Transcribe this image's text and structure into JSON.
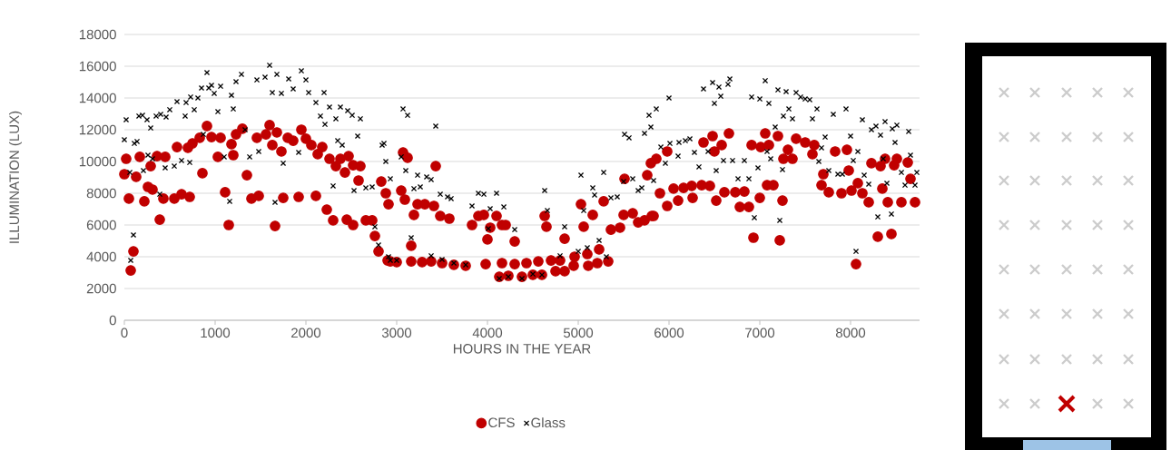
{
  "chart_data": {
    "type": "scatter",
    "xlabel": "HOURS IN THE YEAR",
    "ylabel": "ILLUMINATION (LUX)",
    "xlim": [
      0,
      8760
    ],
    "ylim": [
      0,
      18000
    ],
    "xticks": [
      0,
      1000,
      2000,
      3000,
      4000,
      5000,
      6000,
      7000,
      8000
    ],
    "yticks": [
      0,
      2000,
      4000,
      6000,
      8000,
      10000,
      12000,
      14000,
      16000,
      18000
    ],
    "grid": "y",
    "legend": "bottom",
    "series": [
      {
        "name": "CFS",
        "color": "#c00000",
        "marker": "circle",
        "x": [
          70,
          100,
          50,
          20,
          0,
          130,
          170,
          290,
          260,
          310,
          220,
          390,
          430,
          550,
          630,
          720,
          580,
          700,
          750,
          450,
          360,
          860,
          910,
          830,
          960,
          1060,
          1030,
          1110,
          1150,
          1180,
          1200,
          1230,
          1300,
          1350,
          1400,
          1480,
          1460,
          1560,
          1600,
          1630,
          1680,
          1660,
          1750,
          1730,
          1800,
          1860,
          1950,
          1920,
          2000,
          2060,
          2110,
          2130,
          2180,
          2230,
          2260,
          2300,
          2330,
          2380,
          2430,
          2450,
          2470,
          2520,
          2520,
          2600,
          2580,
          2660,
          2730,
          2760,
          2800,
          2830,
          2880,
          2910,
          2900,
          2930,
          3000,
          3070,
          3120,
          3050,
          3090,
          3160,
          3190,
          3230,
          3310,
          3410,
          3430,
          3480,
          3580,
          3160,
          3280,
          3380,
          3500,
          3630,
          3760,
          3830,
          3900,
          3960,
          4000,
          4030,
          3980,
          4100,
          4160,
          4200,
          4300,
          4130,
          4230,
          4380,
          4500,
          4600,
          4160,
          4300,
          4430,
          4560,
          4630,
          4650,
          4700,
          4750,
          4850,
          4850,
          4800,
          4960,
          4950,
          5030,
          5060,
          5100,
          5110,
          5160,
          5230,
          5210,
          5280,
          5330,
          5360,
          5460,
          5500,
          5510,
          5600,
          5660,
          5730,
          5760,
          5800,
          5810,
          5830,
          5860,
          5900,
          5980,
          5980,
          6100,
          6050,
          6160,
          6250,
          6260,
          6360,
          6380,
          6450,
          6480,
          6500,
          6520,
          6580,
          6610,
          6660,
          6730,
          6780,
          6830,
          6880,
          6930,
          6910,
          7010,
          7000,
          7060,
          7080,
          7100,
          7150,
          7200,
          7220,
          7250,
          7260,
          7310,
          7360,
          7400,
          7500,
          7600,
          7580,
          7680,
          7700,
          7760,
          7830,
          7900,
          7960,
          7980,
          8010,
          8060,
          8080,
          8130,
          8200,
          8230,
          8300,
          8330,
          8350,
          8380,
          8410,
          8450,
          8480,
          8510,
          8560,
          8630,
          8660,
          8710
        ],
        "values": [
          3140,
          4340,
          7660,
          10170,
          9200,
          9030,
          10290,
          9710,
          8400,
          8230,
          7490,
          6340,
          7660,
          7660,
          7940,
          7770,
          10910,
          10860,
          11140,
          10290,
          10340,
          9260,
          12230,
          11490,
          11540,
          11490,
          10290,
          8060,
          6000,
          11090,
          10400,
          11710,
          12060,
          9140,
          7660,
          7830,
          11490,
          11710,
          12290,
          11030,
          11830,
          5940,
          7710,
          10630,
          11490,
          11310,
          12000,
          7770,
          11430,
          11030,
          7830,
          10460,
          10910,
          6970,
          10170,
          6290,
          9710,
          10170,
          9310,
          6340,
          10340,
          6000,
          9770,
          9710,
          8800,
          6290,
          6290,
          5310,
          4340,
          8740,
          8000,
          7310,
          3770,
          3710,
          3660,
          10570,
          10230,
          8170,
          7600,
          4690,
          6630,
          7310,
          7310,
          7200,
          9710,
          6570,
          6400,
          3710,
          3660,
          3710,
          3600,
          3490,
          3430,
          6000,
          6570,
          6630,
          5090,
          5830,
          3540,
          6570,
          6000,
          6000,
          4970,
          2740,
          2800,
          2740,
          2860,
          2860,
          3600,
          3540,
          3600,
          3710,
          6570,
          5890,
          3770,
          3090,
          3090,
          5140,
          3770,
          4000,
          3430,
          7310,
          5890,
          4170,
          3430,
          6630,
          4460,
          3600,
          7490,
          3710,
          5710,
          5830,
          6630,
          8910,
          6740,
          6170,
          6290,
          9140,
          9890,
          6570,
          6570,
          10170,
          8000,
          7200,
          10630,
          7540,
          8290,
          8340,
          8460,
          7710,
          8510,
          11200,
          8460,
          11600,
          10630,
          7540,
          11030,
          8060,
          11770,
          8060,
          7140,
          8110,
          7140,
          5200,
          11030,
          10910,
          7710,
          11770,
          8510,
          11030,
          8510,
          11600,
          5030,
          7540,
          10170,
          10740,
          10170,
          11430,
          11200,
          11030,
          10460,
          8510,
          9200,
          8060,
          10630,
          8000,
          10740,
          9430,
          8170,
          3540,
          8630,
          8000,
          7430,
          9890,
          5260,
          9710,
          8290,
          10170,
          7430,
          5430,
          9770,
          10170,
          7430,
          9940,
          8910,
          7430
        ]
      },
      {
        "name": "Glass",
        "color": "#000000",
        "marker": "cross",
        "x": [
          20,
          0,
          60,
          70,
          100,
          110,
          140,
          160,
          200,
          250,
          290,
          260,
          310,
          210,
          390,
          350,
          400,
          460,
          450,
          550,
          500,
          580,
          630,
          670,
          680,
          730,
          720,
          770,
          810,
          850,
          870,
          910,
          930,
          960,
          990,
          1030,
          1060,
          1100,
          1160,
          1180,
          1200,
          1230,
          1290,
          1330,
          1380,
          1480,
          1460,
          1550,
          1600,
          1630,
          1660,
          1680,
          1750,
          1730,
          1810,
          1860,
          1920,
          1950,
          2000,
          2030,
          2110,
          2160,
          2210,
          2200,
          2260,
          2330,
          2300,
          2350,
          2400,
          2380,
          2460,
          2510,
          2530,
          2600,
          2570,
          2660,
          2730,
          2760,
          2800,
          2840,
          2880,
          2910,
          2860,
          2930,
          2930,
          3000,
          3070,
          3120,
          3100,
          3050,
          3160,
          3190,
          3230,
          3260,
          3330,
          3380,
          3430,
          3480,
          3560,
          3600,
          3380,
          3500,
          3630,
          3760,
          3830,
          3900,
          3960,
          4010,
          4030,
          4100,
          4180,
          4300,
          4130,
          4230,
          4380,
          4500,
          4600,
          4630,
          4660,
          4850,
          4800,
          5000,
          5100,
          5030,
          5060,
          5160,
          5180,
          5230,
          5280,
          5310,
          5360,
          5430,
          5500,
          5510,
          5560,
          5600,
          5660,
          5700,
          5730,
          5780,
          5800,
          5860,
          5830,
          5910,
          5960,
          6000,
          6010,
          6100,
          6110,
          6180,
          6230,
          6280,
          6330,
          6380,
          6430,
          6480,
          6500,
          6520,
          6550,
          6570,
          6600,
          6650,
          6670,
          6700,
          6760,
          6830,
          6880,
          6910,
          6940,
          7000,
          6980,
          7060,
          7080,
          7100,
          7120,
          7170,
          7200,
          7220,
          7250,
          7260,
          7290,
          7320,
          7360,
          7400,
          7450,
          7500,
          7550,
          7580,
          7630,
          7650,
          7680,
          7720,
          7760,
          7810,
          7860,
          7910,
          7950,
          8000,
          8030,
          8060,
          8080,
          8130,
          8150,
          8200,
          8230,
          8280,
          8300,
          8330,
          8360,
          8380,
          8400,
          8450,
          8460,
          8490,
          8510,
          8560,
          8600,
          8640,
          8660,
          8710,
          8730
        ],
        "values": [
          12630,
          11370,
          9310,
          3770,
          5370,
          11140,
          11260,
          12860,
          12910,
          12630,
          12110,
          10400,
          10170,
          9430,
          7940,
          12860,
          12970,
          12800,
          9600,
          9710,
          13260,
          13770,
          10060,
          12860,
          13710,
          14060,
          9940,
          13260,
          14000,
          14630,
          11710,
          15600,
          14630,
          14800,
          14290,
          13140,
          14740,
          10290,
          7490,
          14170,
          13310,
          15030,
          15490,
          12000,
          10290,
          10630,
          15140,
          15310,
          16060,
          14340,
          7430,
          15490,
          9890,
          14290,
          15200,
          14570,
          10570,
          15710,
          15140,
          14340,
          13710,
          12860,
          12340,
          14340,
          13430,
          12690,
          8460,
          11310,
          11030,
          13430,
          13200,
          12910,
          8170,
          12690,
          11600,
          8340,
          8400,
          5890,
          4740,
          11030,
          10000,
          4000,
          11140,
          8910,
          3770,
          3770,
          13310,
          12910,
          9430,
          10290,
          5200,
          8290,
          9140,
          8400,
          9030,
          8860,
          12230,
          7940,
          7770,
          7660,
          4060,
          3830,
          3600,
          3490,
          7200,
          8000,
          7940,
          5770,
          7030,
          8000,
          7140,
          5710,
          2630,
          2740,
          2630,
          2910,
          2860,
          8170,
          6910,
          5890,
          4060,
          4340,
          4570,
          9140,
          6910,
          8340,
          7890,
          5030,
          9310,
          4000,
          7710,
          7770,
          8740,
          11710,
          11490,
          8910,
          8170,
          8340,
          11770,
          12910,
          12170,
          13310,
          8800,
          10910,
          9890,
          14000,
          11140,
          10340,
          11200,
          11310,
          11430,
          10570,
          9660,
          14570,
          10630,
          14970,
          13660,
          9430,
          14690,
          14110,
          10060,
          14860,
          15200,
          10060,
          8910,
          10060,
          8910,
          14060,
          6460,
          13940,
          9600,
          15090,
          10630,
          13660,
          10170,
          12170,
          14510,
          6290,
          9490,
          12860,
          14400,
          13310,
          12690,
          14340,
          14060,
          13940,
          13890,
          12690,
          13310,
          10000,
          10860,
          11540,
          9430,
          12970,
          9200,
          9200,
          13310,
          11600,
          10060,
          4340,
          10630,
          12630,
          9140,
          8570,
          12000,
          12230,
          6510,
          11660,
          10170,
          12510,
          8630,
          6690,
          12060,
          11200,
          12290,
          9310,
          8510,
          11890,
          10400,
          8510,
          9310
        ]
      }
    ]
  }
}
